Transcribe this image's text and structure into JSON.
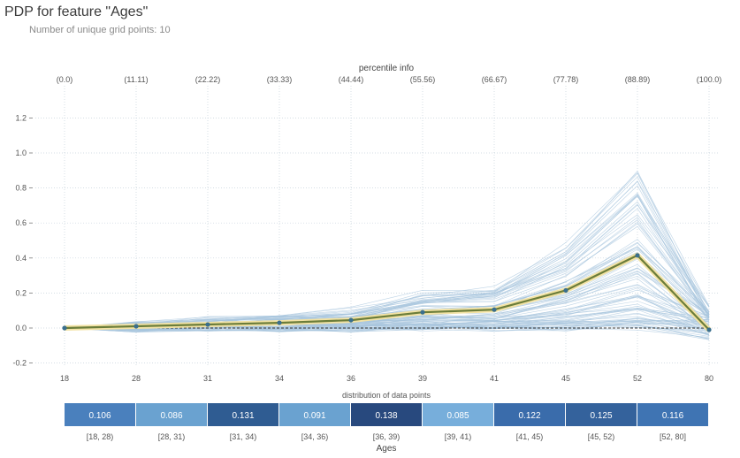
{
  "title": "PDP for feature \"Ages\"",
  "subtitle": "Number of unique grid points: 10",
  "chart_data": {
    "type": "line",
    "title": "PDP for feature \"Ages\"",
    "xlabel": "Ages",
    "ylabel": "",
    "ylim": [
      -0.2,
      1.3
    ],
    "yticks": [
      -0.2,
      0,
      0.2,
      0.4,
      0.6,
      0.8,
      1.0,
      1.2
    ],
    "ytick_labels": [
      "-0.2",
      "0.0",
      "0.2",
      "0.4",
      "0.6",
      "0.8",
      "1.0",
      "1.2"
    ],
    "grid": true,
    "x_grid_labels": [
      "18",
      "28",
      "31",
      "34",
      "36",
      "39",
      "41",
      "45",
      "52",
      "80"
    ],
    "percentile_title": "percentile info",
    "percentile_labels": [
      "(0.0)",
      "(11.11)",
      "(22.22)",
      "(33.33)",
      "(44.44)",
      "(55.56)",
      "(66.67)",
      "(77.78)",
      "(88.89)",
      "(100.0)"
    ],
    "series": [
      {
        "values": [
          0.0,
          0.01,
          0.02,
          0.03,
          0.045,
          0.09,
          0.105,
          0.215,
          0.415,
          -0.01
        ],
        "color": "#6b7d3a"
      }
    ],
    "ice_lines_shown": true,
    "distribution": {
      "title": "distribution of data points",
      "bins": [
        "[18, 28)",
        "[28, 31)",
        "[31, 34)",
        "[34, 36)",
        "[36, 39)",
        "[39, 41)",
        "[41, 45)",
        "[45, 52)",
        "[52, 80]"
      ],
      "values": [
        "0.106",
        "0.086",
        "0.131",
        "0.091",
        "0.138",
        "0.085",
        "0.122",
        "0.125",
        "0.116"
      ],
      "colors": [
        "#4a80bd",
        "#6aa2d0",
        "#2f5c92",
        "#6aa2d0",
        "#28497e",
        "#77aedb",
        "#3a6cab",
        "#34629c",
        "#3f74b3"
      ]
    },
    "colors": {
      "pdp_line": "#6b7d3a",
      "pdp_glow": "#f2e2a4",
      "pdp_point": "#3a6f8e",
      "ice_line": "#a8c6dd",
      "grid_line": "#c6d2dc",
      "baseline": "#333333"
    }
  }
}
